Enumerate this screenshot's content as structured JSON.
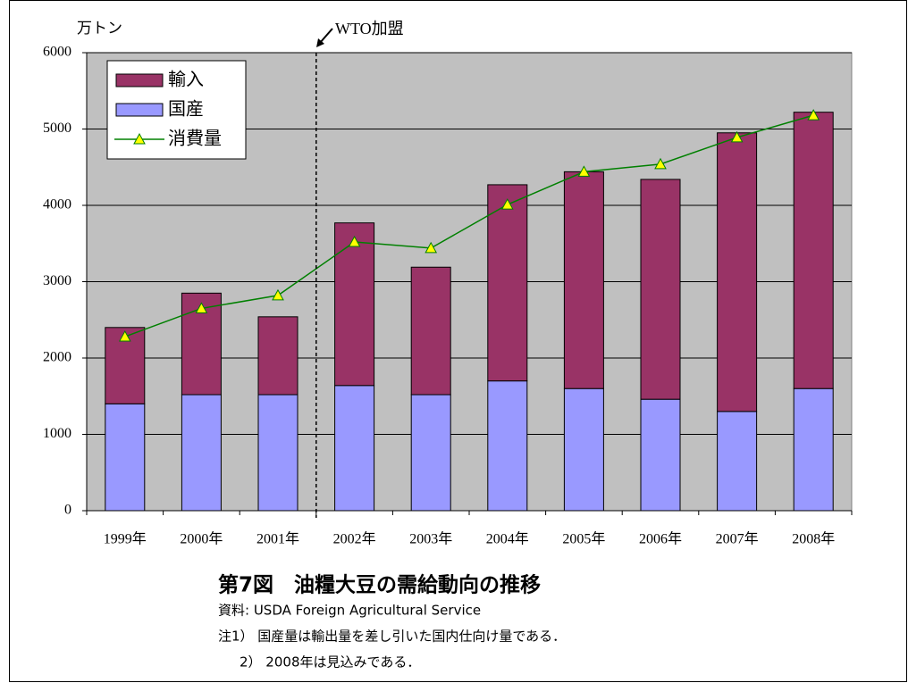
{
  "chart_data": {
    "type": "stacked_bar_line",
    "title": "第7図　油糧大豆の需給動向の推移",
    "y_unit": "万トン",
    "annotation": "WTO加盟",
    "notes": [
      "資料: USDA  Foreign  Agricultural  Service",
      "注1） 国産量は輸出量を差し引いた国内仕向け量である．",
      "2） 2008年は見込みである．"
    ],
    "categories": [
      "1999年",
      "2000年",
      "2001年",
      "2002年",
      "2003年",
      "2004年",
      "2005年",
      "2006年",
      "2007年",
      "2008年"
    ],
    "series": [
      {
        "name": "輸入",
        "kind": "bar",
        "color": "#993366",
        "values": [
          1000,
          1330,
          1020,
          2130,
          1670,
          2570,
          2840,
          2880,
          3650,
          3620
        ]
      },
      {
        "name": "国産",
        "kind": "bar",
        "color": "#9999ff",
        "values": [
          1400,
          1520,
          1520,
          1640,
          1520,
          1700,
          1600,
          1460,
          1300,
          1600
        ]
      },
      {
        "name": "消費量",
        "kind": "line",
        "color": "#008000",
        "marker_color": "#ffff00",
        "values": [
          2280,
          2650,
          2820,
          3520,
          3440,
          4010,
          4440,
          4540,
          4890,
          5180
        ]
      }
    ],
    "ylim": [
      0,
      6000
    ],
    "yticks": [
      0,
      1000,
      2000,
      3000,
      4000,
      5000,
      6000
    ],
    "grid": true,
    "legend": "upper left"
  }
}
